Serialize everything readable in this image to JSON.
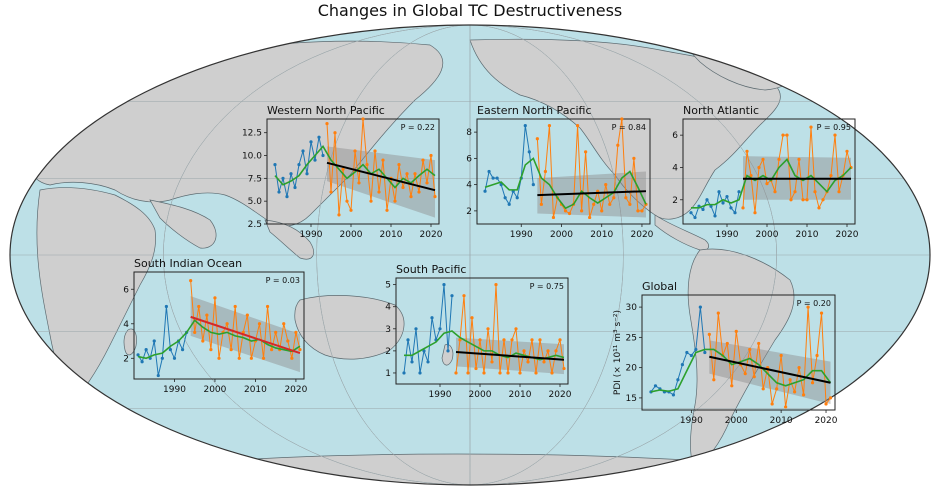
{
  "title": "Changes in Global TC Destructiveness",
  "colors": {
    "ocean": "#bde0e7",
    "land": "#cfcfcf",
    "coast": "#5c6a70",
    "early": "#1f77b4",
    "late": "#ff7f0e",
    "smooth": "#2ca02c",
    "trend": "#000000",
    "trend_significant": "#d62728",
    "band": "#8c8c8c"
  },
  "chart_data": [
    {
      "type": "line",
      "title": "Western North Pacific",
      "p_label": "P = 0.22",
      "ylabel": "",
      "xlim": [
        1979,
        2022
      ],
      "ylim": [
        2.5,
        14
      ],
      "yticks": [
        2.5,
        5.0,
        7.5,
        10.0,
        12.5
      ],
      "ytick_labels": [
        "2.5",
        "5.0",
        "7.5",
        "10.0",
        "12.5"
      ],
      "xticks": [
        1990,
        2000,
        2010,
        2020
      ],
      "early_series": {
        "x": [
          1981,
          1982,
          1983,
          1984,
          1985,
          1986,
          1987,
          1988,
          1989,
          1990,
          1991,
          1992,
          1993
        ],
        "y": [
          9.0,
          6.0,
          7.5,
          5.5,
          8.0,
          6.5,
          9.0,
          10.5,
          8.0,
          11.5,
          9.5,
          12.0,
          10.0
        ]
      },
      "late_series": {
        "x": [
          1994,
          1995,
          1996,
          1997,
          1998,
          1999,
          2000,
          2001,
          2002,
          2003,
          2004,
          2005,
          2006,
          2007,
          2008,
          2009,
          2010,
          2011,
          2012,
          2013,
          2014,
          2015,
          2016,
          2017,
          2018,
          2019,
          2020,
          2021
        ],
        "y": [
          13.5,
          6.0,
          12.5,
          3.5,
          8.5,
          5.0,
          4.0,
          10.5,
          7.0,
          14.0,
          9.0,
          5.0,
          10.5,
          6.0,
          9.5,
          4.0,
          7.5,
          5.0,
          9.0,
          6.5,
          8.0,
          5.5,
          8.0,
          6.0,
          9.5,
          7.0,
          10.0,
          5.5
        ]
      },
      "smooth": {
        "x": [
          1981,
          1983,
          1985,
          1987,
          1989,
          1991,
          1993,
          1995,
          1997,
          1999,
          2001,
          2003,
          2005,
          2007,
          2009,
          2011,
          2013,
          2015,
          2017,
          2019,
          2021
        ],
        "y": [
          7.8,
          6.8,
          7.2,
          7.8,
          9.0,
          10.0,
          11.0,
          9.5,
          8.5,
          7.5,
          8.2,
          9.0,
          8.0,
          8.5,
          7.5,
          6.5,
          7.5,
          7.0,
          7.8,
          8.5,
          7.8
        ]
      },
      "trend": {
        "x": [
          1994,
          2021
        ],
        "y": [
          9.2,
          6.2
        ],
        "band_upper": [
          11.0,
          9.5
        ],
        "band_lower": [
          7.2,
          3.2
        ],
        "significant": false
      }
    },
    {
      "type": "line",
      "title": "Eastern North Pacific",
      "p_label": "P = 0.84",
      "ylabel": "",
      "xlim": [
        1979,
        2022
      ],
      "ylim": [
        1,
        9
      ],
      "yticks": [
        2,
        4,
        6,
        8
      ],
      "ytick_labels": [
        "2",
        "4",
        "6",
        "8"
      ],
      "xticks": [
        1990,
        2000,
        2010,
        2020
      ],
      "early_series": {
        "x": [
          1981,
          1982,
          1983,
          1984,
          1985,
          1986,
          1987,
          1988,
          1989,
          1990,
          1991,
          1992,
          1993
        ],
        "y": [
          3.5,
          5.0,
          4.5,
          4.5,
          4.0,
          3.0,
          2.5,
          3.5,
          3.0,
          4.5,
          8.5,
          6.5,
          4.0
        ]
      },
      "late_series": {
        "x": [
          1994,
          1995,
          1996,
          1997,
          1998,
          1999,
          2000,
          2001,
          2002,
          2003,
          2004,
          2005,
          2006,
          2007,
          2008,
          2009,
          2010,
          2011,
          2012,
          2013,
          2014,
          2015,
          2016,
          2017,
          2018,
          2019,
          2020,
          2021
        ],
        "y": [
          7.5,
          2.5,
          5.0,
          8.5,
          1.5,
          3.0,
          2.5,
          2.0,
          1.8,
          2.5,
          8.5,
          2.0,
          6.5,
          1.5,
          2.5,
          3.5,
          2.0,
          4.0,
          2.5,
          3.0,
          7.0,
          9.0,
          3.0,
          2.5,
          6.0,
          2.0,
          2.0,
          2.5
        ]
      },
      "smooth": {
        "x": [
          1981,
          1983,
          1985,
          1987,
          1989,
          1991,
          1993,
          1995,
          1997,
          1999,
          2001,
          2003,
          2005,
          2007,
          2009,
          2011,
          2013,
          2015,
          2017,
          2019,
          2021
        ],
        "y": [
          3.8,
          4.0,
          4.2,
          3.6,
          3.6,
          5.5,
          6.0,
          4.5,
          4.0,
          3.0,
          2.2,
          2.5,
          3.5,
          3.0,
          2.6,
          3.0,
          3.4,
          4.5,
          5.0,
          3.8,
          2.5
        ]
      },
      "trend": {
        "x": [
          1994,
          2021
        ],
        "y": [
          3.2,
          3.5
        ],
        "band_upper": [
          4.5,
          5.0
        ],
        "band_lower": [
          1.8,
          1.5
        ],
        "significant": false
      }
    },
    {
      "type": "line",
      "title": "North Atlantic",
      "p_label": "P = 0.95",
      "ylabel": "",
      "xlim": [
        1979,
        2022
      ],
      "ylim": [
        0.5,
        7
      ],
      "yticks": [
        2,
        4,
        6
      ],
      "ytick_labels": [
        "2",
        "4",
        "6"
      ],
      "xticks": [
        1990,
        2000,
        2010,
        2020
      ],
      "early_series": {
        "x": [
          1981,
          1982,
          1983,
          1984,
          1985,
          1986,
          1987,
          1988,
          1989,
          1990,
          1991,
          1992,
          1993
        ],
        "y": [
          1.2,
          0.9,
          1.6,
          1.4,
          2.0,
          1.6,
          1.0,
          2.5,
          1.8,
          2.2,
          1.5,
          1.2,
          2.5
        ]
      },
      "late_series": {
        "x": [
          1994,
          1995,
          1996,
          1997,
          1998,
          1999,
          2000,
          2001,
          2002,
          2003,
          2004,
          2005,
          2006,
          2007,
          2008,
          2009,
          2010,
          2011,
          2012,
          2013,
          2014,
          2015,
          2016,
          2017,
          2018,
          2019,
          2020,
          2021
        ],
        "y": [
          1.5,
          5.0,
          3.5,
          1.2,
          4.0,
          4.5,
          3.0,
          3.2,
          2.5,
          4.5,
          6.0,
          6.0,
          2.0,
          2.5,
          4.5,
          2.0,
          2.0,
          6.5,
          2.5,
          1.5,
          2.0,
          2.5,
          3.5,
          6.0,
          2.5,
          3.5,
          5.0,
          4.0
        ]
      },
      "smooth": {
        "x": [
          1981,
          1983,
          1985,
          1987,
          1989,
          1991,
          1993,
          1995,
          1997,
          1999,
          2001,
          2003,
          2005,
          2007,
          2009,
          2011,
          2013,
          2015,
          2017,
          2019,
          2021
        ],
        "y": [
          1.5,
          1.5,
          1.7,
          1.7,
          2.0,
          1.8,
          2.0,
          3.5,
          3.2,
          3.5,
          3.2,
          4.0,
          4.5,
          3.5,
          3.2,
          3.5,
          3.0,
          2.5,
          3.2,
          3.5,
          4.0
        ]
      },
      "trend": {
        "x": [
          1994,
          2021
        ],
        "y": [
          3.3,
          3.3
        ],
        "band_upper": [
          4.7,
          4.6
        ],
        "band_lower": [
          2.0,
          2.0
        ],
        "significant": false
      }
    },
    {
      "type": "line",
      "title": "South Indian Ocean",
      "p_label": "P = 0.03",
      "ylabel": "",
      "xlim": [
        1980,
        2022
      ],
      "ylim": [
        0.8,
        7
      ],
      "yticks": [
        2,
        4,
        6
      ],
      "ytick_labels": [
        "2",
        "4",
        "6"
      ],
      "xticks": [
        1990,
        2000,
        2010,
        2020
      ],
      "early_series": {
        "x": [
          1981,
          1982,
          1983,
          1984,
          1985,
          1986,
          1987,
          1988,
          1989,
          1990,
          1991,
          1992,
          1993
        ],
        "y": [
          2.2,
          1.8,
          2.5,
          2.0,
          3.0,
          1.0,
          2.0,
          5.0,
          2.5,
          2.0,
          3.0,
          2.5,
          3.5
        ]
      },
      "late_series": {
        "x": [
          1994,
          1995,
          1996,
          1997,
          1998,
          1999,
          2000,
          2001,
          2002,
          2003,
          2004,
          2005,
          2006,
          2007,
          2008,
          2009,
          2010,
          2011,
          2012,
          2013,
          2014,
          2015,
          2016,
          2017,
          2018,
          2019,
          2020,
          2021
        ],
        "y": [
          6.5,
          3.5,
          5.0,
          3.0,
          4.5,
          2.5,
          5.5,
          2.0,
          3.5,
          4.0,
          2.5,
          5.0,
          2.0,
          3.5,
          4.5,
          2.0,
          3.0,
          4.0,
          2.0,
          5.0,
          2.5,
          3.5,
          2.5,
          4.0,
          3.0,
          2.0,
          3.5,
          2.5
        ]
      },
      "smooth": {
        "x": [
          1981,
          1983,
          1985,
          1987,
          1989,
          1991,
          1993,
          1995,
          1997,
          1999,
          2001,
          2003,
          2005,
          2007,
          2009,
          2011,
          2013,
          2015,
          2017,
          2019,
          2021
        ],
        "y": [
          2.1,
          2.0,
          2.2,
          2.3,
          2.7,
          3.0,
          3.5,
          4.2,
          3.8,
          3.5,
          3.4,
          3.5,
          3.3,
          3.2,
          3.0,
          3.1,
          2.8,
          2.6,
          2.5,
          2.4,
          2.7
        ]
      },
      "trend": {
        "x": [
          1994,
          2021
        ],
        "y": [
          4.4,
          2.3
        ],
        "band_upper": [
          5.6,
          3.4
        ],
        "band_lower": [
          3.3,
          1.2
        ],
        "significant": true
      }
    },
    {
      "type": "line",
      "title": "South Pacific",
      "p_label": "P = 0.75",
      "ylabel": "",
      "xlim": [
        1979,
        2022
      ],
      "ylim": [
        0.5,
        5.3
      ],
      "yticks": [
        1,
        2,
        3,
        4,
        5
      ],
      "ytick_labels": [
        "1",
        "2",
        "3",
        "4",
        "5"
      ],
      "xticks": [
        1990,
        2000,
        2010,
        2020
      ],
      "early_series": {
        "x": [
          1981,
          1982,
          1983,
          1984,
          1985,
          1986,
          1987,
          1988,
          1989,
          1990,
          1991,
          1992,
          1993
        ],
        "y": [
          1.0,
          2.5,
          1.5,
          3.0,
          1.0,
          2.0,
          1.5,
          3.5,
          2.5,
          3.0,
          5.0,
          2.0,
          4.5
        ]
      },
      "late_series": {
        "x": [
          1994,
          1995,
          1996,
          1997,
          1998,
          1999,
          2000,
          2001,
          2002,
          2003,
          2004,
          2005,
          2006,
          2007,
          2008,
          2009,
          2010,
          2011,
          2012,
          2013,
          2014,
          2015,
          2016,
          2017,
          2018,
          2019,
          2020,
          2021
        ],
        "y": [
          1.0,
          2.5,
          4.5,
          1.0,
          3.5,
          1.2,
          2.5,
          1.0,
          3.0,
          1.5,
          5.0,
          1.0,
          2.5,
          1.0,
          2.5,
          3.0,
          1.0,
          2.0,
          1.5,
          2.5,
          1.0,
          2.5,
          1.5,
          2.0,
          1.0,
          2.0,
          2.5,
          1.2
        ]
      },
      "smooth": {
        "x": [
          1981,
          1983,
          1985,
          1987,
          1989,
          1991,
          1993,
          1995,
          1997,
          1999,
          2001,
          2003,
          2005,
          2007,
          2009,
          2011,
          2013,
          2015,
          2017,
          2019,
          2021
        ],
        "y": [
          1.8,
          1.8,
          2.0,
          2.2,
          2.4,
          2.8,
          2.9,
          2.6,
          2.4,
          2.2,
          2.0,
          2.0,
          1.8,
          1.7,
          1.9,
          1.8,
          1.7,
          1.6,
          1.7,
          1.8,
          1.7
        ]
      },
      "trend": {
        "x": [
          1994,
          2021
        ],
        "y": [
          1.95,
          1.6
        ],
        "band_upper": [
          2.6,
          2.3
        ],
        "band_lower": [
          1.3,
          0.95
        ],
        "significant": false
      }
    },
    {
      "type": "line",
      "title": "Global",
      "p_label": "P = 0.20",
      "ylabel": "PDI (× 10¹¹ m³ s⁻²)",
      "xlim": [
        1979,
        2022
      ],
      "ylim": [
        13,
        32
      ],
      "yticks": [
        15,
        20,
        25,
        30
      ],
      "ytick_labels": [
        "15",
        "20",
        "25",
        "30"
      ],
      "xticks": [
        1990,
        2000,
        2010,
        2020
      ],
      "early_series": {
        "x": [
          1981,
          1982,
          1983,
          1984,
          1985,
          1986,
          1987,
          1988,
          1989,
          1990,
          1991,
          1992,
          1993
        ],
        "y": [
          16.0,
          17.0,
          16.5,
          16.0,
          16.0,
          15.5,
          18.0,
          20.5,
          22.5,
          22.0,
          23.0,
          30.0,
          22.5
        ]
      },
      "late_series": {
        "x": [
          1994,
          1995,
          1996,
          1997,
          1998,
          1999,
          2000,
          2001,
          2002,
          2003,
          2004,
          2005,
          2006,
          2007,
          2008,
          2009,
          2010,
          2011,
          2012,
          2013,
          2014,
          2015,
          2016,
          2017,
          2018,
          2019,
          2020,
          2021
        ],
        "y": [
          25.5,
          18.0,
          29.0,
          22.0,
          24.0,
          17.0,
          26.0,
          20.5,
          19.0,
          23.0,
          18.5,
          24.0,
          16.5,
          20.0,
          14.0,
          16.5,
          22.0,
          13.5,
          18.0,
          16.0,
          20.0,
          15.5,
          30.0,
          17.5,
          22.0,
          29.0,
          14.0,
          15.0
        ]
      },
      "smooth": {
        "x": [
          1981,
          1983,
          1985,
          1987,
          1989,
          1991,
          1993,
          1995,
          1997,
          1999,
          2001,
          2003,
          2005,
          2007,
          2009,
          2011,
          2013,
          2015,
          2017,
          2019,
          2021
        ],
        "y": [
          16.0,
          16.3,
          16.1,
          16.5,
          19.5,
          22.5,
          23.0,
          23.0,
          22.0,
          20.5,
          21.0,
          21.5,
          20.5,
          19.0,
          17.5,
          17.0,
          17.5,
          18.0,
          19.5,
          19.5,
          17.5
        ]
      },
      "trend": {
        "x": [
          1994,
          2021
        ],
        "y": [
          21.8,
          17.5
        ],
        "band_upper": [
          24.5,
          21.0
        ],
        "band_lower": [
          19.0,
          14.0
        ],
        "significant": false
      }
    }
  ]
}
